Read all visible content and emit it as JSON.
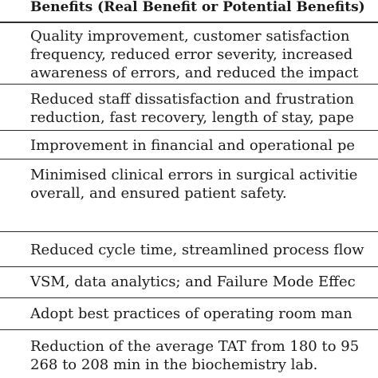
{
  "table": {
    "header": "Benefits (Real Benefit or Potential Benefits)",
    "rows": [
      {
        "lines": [
          "Quality improvement, customer satisfaction",
          "frequency, reduced error severity, increased",
          "awareness of errors, and reduced the impact"
        ]
      },
      {
        "lines": [
          "Reduced staff dissatisfaction and frustration",
          "reduction, fast recovery, length of stay, pape"
        ]
      },
      {
        "lines": [
          "Improvement in financial and operational pe"
        ]
      },
      {
        "lines": [
          "Minimised clinical errors in surgical activitie",
          "overall, and ensured patient safety."
        ]
      },
      {
        "lines": [
          "Reduced cycle time, streamlined process flow"
        ]
      },
      {
        "lines": [
          "VSM, data analytics; and Failure Mode Effec"
        ]
      },
      {
        "lines": [
          "Adopt best practices of operating room man"
        ]
      },
      {
        "lines": [
          "Reduction of the average TAT from 180 to 95",
          "268 to 208 min in the biochemistry lab."
        ]
      }
    ]
  }
}
